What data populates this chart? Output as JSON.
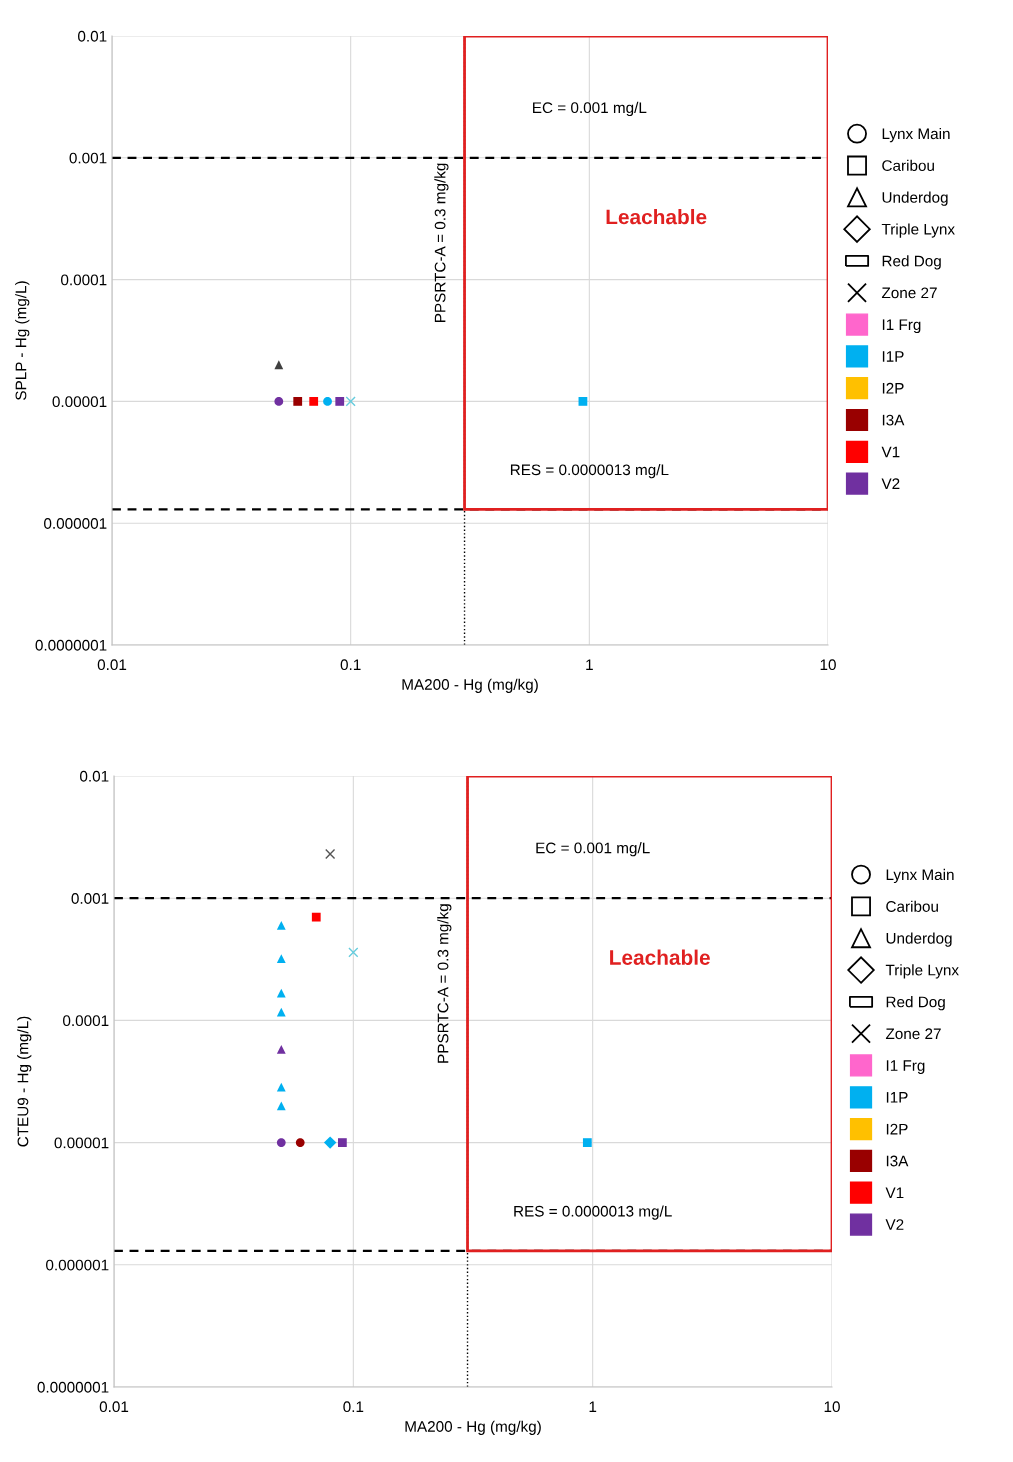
{
  "chart_data": [
    {
      "type": "scatter",
      "xlabel": "MA200 - Hg (mg/kg)",
      "ylabel": "SPLP - Hg (mg/L)",
      "log": "xy",
      "grid": true,
      "legend": "right",
      "xlim": [
        0.01,
        10
      ],
      "xticks": [
        0.01,
        0.1,
        1,
        10
      ],
      "ylim": [
        1e-07,
        0.01
      ],
      "yticks": [
        0.01,
        0.001,
        0.0001,
        {
          "value": 1e-05,
          "label": "0.00001"
        },
        {
          "value": 1e-06,
          "label": "0.000001"
        },
        {
          "value": 1e-07,
          "label": "0.0000001"
        }
      ],
      "annotations": [
        "Leachable"
      ],
      "ref_lines": [
        {
          "axis": "y",
          "value": 0.001,
          "label": "EC = 0.001 mg/L",
          "line_style": "dashed",
          "color": "#000000"
        },
        {
          "axis": "y",
          "value": 1.3e-06,
          "label": "RES = 0.0000013 mg/L",
          "line_style": "dashed",
          "color": "#000000"
        },
        {
          "axis": "x",
          "value": 0.3,
          "label": "PPSRTC-A = 0.3 mg/kg",
          "line_style": "dotted",
          "color": "#000000"
        }
      ],
      "series": [
        {
          "name": "Lynx Main",
          "marker": "circle",
          "color": "#000000"
        },
        {
          "name": "Caribou",
          "marker": "square",
          "color": "#000000"
        },
        {
          "name": "Underdog",
          "marker": "triangle",
          "color": "#000000"
        },
        {
          "name": "Triple Lynx",
          "marker": "diamond",
          "color": "#000000"
        },
        {
          "name": "Red Dog",
          "marker": "rectangle",
          "color": "#000000"
        },
        {
          "name": "Zone 27",
          "marker": "cross",
          "color": "#000000"
        },
        {
          "name": "I1 Frg",
          "marker": "square",
          "color": "#ff66cc"
        },
        {
          "name": "I1P",
          "marker": "square",
          "color": "#00b0f0"
        },
        {
          "name": "I2P",
          "marker": "square",
          "color": "#ffc000"
        },
        {
          "name": "I3A",
          "marker": "square",
          "color": "#990000"
        },
        {
          "name": "V1",
          "marker": "square",
          "color": "#ff0000"
        },
        {
          "name": "V2",
          "marker": "square",
          "color": "#7030a0"
        },
        {
          "marker": "circle",
          "color": "#7030a0",
          "x": [
            0.05
          ],
          "values": [
            1e-05
          ]
        },
        {
          "marker": "circle",
          "color": "#00b0f0",
          "x": [
            0.08
          ],
          "values": [
            1e-05
          ]
        },
        {
          "marker": "square",
          "color": "#990000",
          "x": [
            0.06
          ],
          "values": [
            1e-05
          ]
        },
        {
          "marker": "square",
          "color": "#ff0000",
          "x": [
            0.07
          ],
          "values": [
            1e-05
          ]
        },
        {
          "marker": "square",
          "color": "#7030a0",
          "x": [
            0.09
          ],
          "values": [
            1e-05
          ]
        },
        {
          "marker": "square",
          "color": "#00b0f0",
          "x": [
            0.94
          ],
          "values": [
            1e-05
          ]
        },
        {
          "marker": "triangle",
          "color": "#404040",
          "x": [
            0.05
          ],
          "values": [
            2e-05
          ]
        },
        {
          "marker": "cross",
          "color": "#66ccdd",
          "x": [
            0.1
          ],
          "values": [
            1e-05
          ]
        }
      ]
    },
    {
      "type": "scatter",
      "xlabel": "MA200 - Hg (mg/kg)",
      "ylabel": "CTEU9 - Hg (mg/L)",
      "log": "xy",
      "grid": true,
      "legend": "right",
      "xlim": [
        0.01,
        10
      ],
      "xticks": [
        0.01,
        0.1,
        1,
        10
      ],
      "ylim": [
        1e-07,
        0.01
      ],
      "yticks": [
        0.01,
        0.001,
        0.0001,
        {
          "value": 1e-05,
          "label": "0.00001"
        },
        {
          "value": 1e-06,
          "label": "0.000001"
        },
        {
          "value": 1e-07,
          "label": "0.0000001"
        }
      ],
      "annotations": [
        "Leachable"
      ],
      "ref_lines": [
        {
          "axis": "y",
          "value": 0.001,
          "label": "EC = 0.001 mg/L",
          "line_style": "dashed",
          "color": "#000000"
        },
        {
          "axis": "y",
          "value": 1.3e-06,
          "label": "RES = 0.0000013 mg/L",
          "line_style": "dashed",
          "color": "#000000"
        },
        {
          "axis": "x",
          "value": 0.3,
          "label": "PPSRTC-A = 0.3 mg/kg",
          "line_style": "dotted",
          "color": "#000000"
        }
      ],
      "series": [
        {
          "name": "Lynx Main",
          "marker": "circle",
          "color": "#000000"
        },
        {
          "name": "Caribou",
          "marker": "square",
          "color": "#000000"
        },
        {
          "name": "Underdog",
          "marker": "triangle",
          "color": "#000000"
        },
        {
          "name": "Triple Lynx",
          "marker": "diamond",
          "color": "#000000"
        },
        {
          "name": "Red Dog",
          "marker": "rectangle",
          "color": "#000000"
        },
        {
          "name": "Zone 27",
          "marker": "cross",
          "color": "#000000"
        },
        {
          "name": "I1 Frg",
          "marker": "square",
          "color": "#ff66cc"
        },
        {
          "name": "I1P",
          "marker": "square",
          "color": "#00b0f0"
        },
        {
          "name": "I2P",
          "marker": "square",
          "color": "#ffc000"
        },
        {
          "name": "I3A",
          "marker": "square",
          "color": "#990000"
        },
        {
          "name": "V1",
          "marker": "square",
          "color": "#ff0000"
        },
        {
          "name": "V2",
          "marker": "square",
          "color": "#7030a0"
        },
        {
          "marker": "circle",
          "color": "#7030a0",
          "x": [
            0.05
          ],
          "values": [
            1e-05
          ]
        },
        {
          "marker": "circle",
          "color": "#990000",
          "x": [
            0.06
          ],
          "values": [
            1e-05
          ]
        },
        {
          "marker": "square",
          "color": "#ff0000",
          "x": [
            0.07
          ],
          "values": [
            0.0007
          ]
        },
        {
          "marker": "square",
          "color": "#7030a0",
          "x": [
            0.09
          ],
          "values": [
            1e-05
          ]
        },
        {
          "marker": "square",
          "color": "#00b0f0",
          "x": [
            0.95
          ],
          "values": [
            1e-05
          ]
        },
        {
          "marker": "triangle",
          "color": "#00b0f0",
          "x": [
            0.05,
            0.05,
            0.05,
            0.05,
            0.05,
            0.05
          ],
          "values": [
            0.0006,
            0.00032,
            0.000167,
            0.000117,
            2.85e-05,
            2e-05
          ]
        },
        {
          "marker": "triangle",
          "color": "#7030a0",
          "x": [
            0.05
          ],
          "values": [
            5.8e-05
          ]
        },
        {
          "marker": "diamond",
          "color": "#00b0f0",
          "x": [
            0.08
          ],
          "values": [
            1e-05
          ]
        },
        {
          "marker": "cross",
          "color": "#555555",
          "x": [
            0.08
          ],
          "values": [
            0.0023
          ]
        },
        {
          "marker": "cross",
          "color": "#66ccdd",
          "x": [
            0.1
          ],
          "values": [
            0.00036
          ]
        }
      ]
    }
  ]
}
